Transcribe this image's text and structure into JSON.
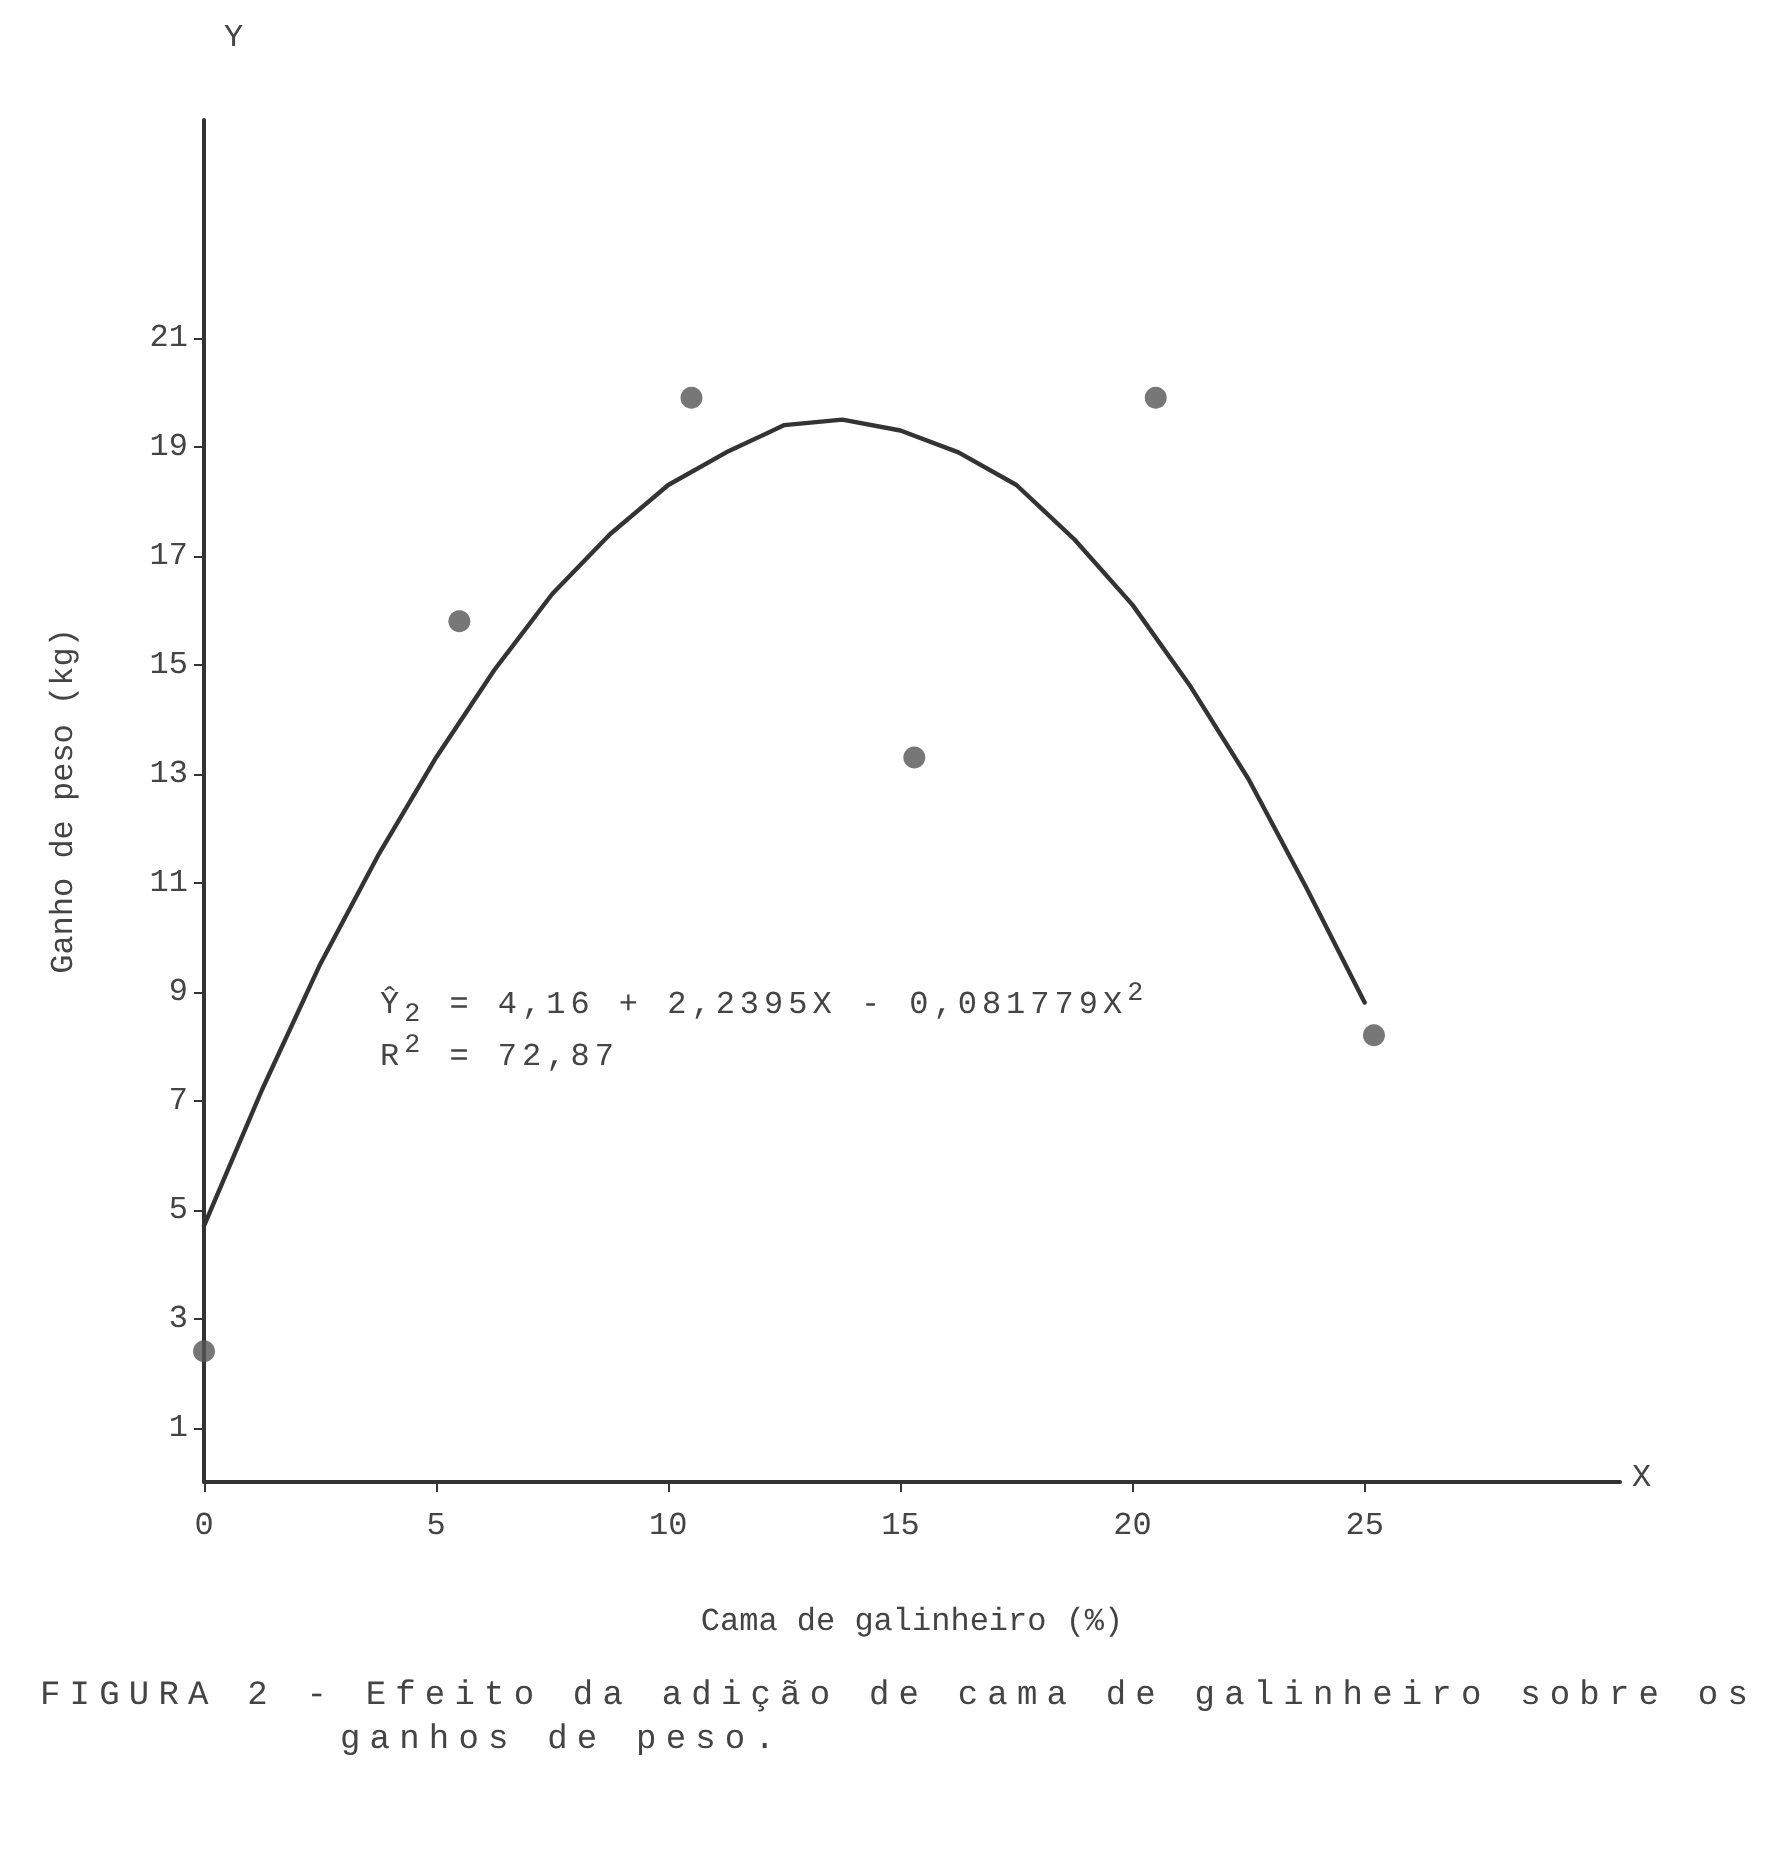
{
  "chart_data": {
    "type": "scatter",
    "xlabel": "Cama de galinheiro (%)",
    "ylabel": "Ganho de peso (kg)",
    "xlim": [
      0,
      30.5
    ],
    "xticks": [
      0,
      5,
      10,
      15,
      20,
      25
    ],
    "ylim": [
      0,
      25
    ],
    "yticks": [
      1,
      3,
      5,
      7,
      9,
      11,
      13,
      15,
      17,
      19,
      21
    ],
    "marker": "circle",
    "series": [
      {
        "color": "#555555",
        "x": [
          0,
          5.5,
          10.5,
          15.3,
          20.5,
          25.2
        ],
        "values": [
          2.4,
          15.8,
          19.9,
          13.3,
          19.9,
          8.2
        ]
      },
      {
        "type": "line",
        "color": "#333333",
        "marker": "none",
        "line_style": "solid",
        "x": [
          0,
          1.25,
          2.5,
          3.75,
          5,
          6.25,
          7.5,
          8.75,
          10,
          11.25,
          12.5,
          13.75,
          15,
          16.25,
          17.5,
          18.75,
          20,
          21.25,
          22.5,
          23.75,
          25
        ],
        "values": [
          4.7,
          7.2,
          9.5,
          11.5,
          13.3,
          14.9,
          16.3,
          17.4,
          18.3,
          18.9,
          19.4,
          19.5,
          19.3,
          18.9,
          18.3,
          17.3,
          16.1,
          14.6,
          12.9,
          10.9,
          8.8
        ]
      }
    ],
    "annotations": [
      "Y",
      "X",
      "Ŷ$_{2}$ = 4,16 + 2,2395X - 0,081779X$^{2}$",
      "R$^{2}$ = 72,87",
      "FIGURA 2 - Efeito da adição de cama de galinheiro sobre os ganhos de peso."
    ]
  }
}
